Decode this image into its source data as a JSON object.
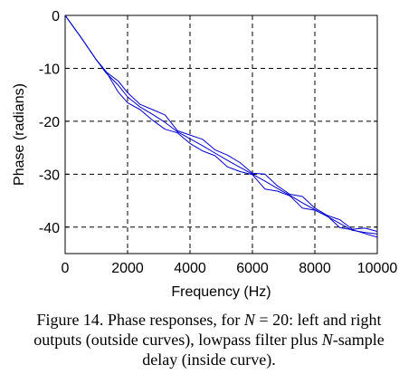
{
  "chart_data": {
    "type": "line",
    "xlabel": "Frequency (Hz)",
    "ylabel": "Phase (radians)",
    "xlim": [
      0,
      10000
    ],
    "ylim": [
      -45,
      0
    ],
    "xticks": [
      "0",
      "2000",
      "4000",
      "6000",
      "8000",
      "10000"
    ],
    "yticks": [
      "0",
      "-10",
      "-20",
      "-30",
      "-40"
    ],
    "grid": true,
    "line_color": "#0000cc",
    "series": [
      {
        "values_x": [
          0,
          500,
          1000,
          1300,
          1700,
          2000,
          2400,
          2800,
          3200,
          3600,
          4000,
          4400,
          4800,
          5200,
          5600,
          6000,
          6400,
          6800,
          7200,
          7600,
          8000,
          8400,
          8800,
          9200,
          9600,
          10000
        ],
        "values_y": [
          0,
          -4.1,
          -8.4,
          -10.5,
          -14.5,
          -16.5,
          -17.8,
          -19.8,
          -21.5,
          -22.2,
          -24.2,
          -25.6,
          -26.5,
          -28.6,
          -29.5,
          -30.1,
          -32.8,
          -33.2,
          -34.1,
          -36.4,
          -36.8,
          -37.9,
          -40.1,
          -40.5,
          -41.2,
          -41.9
        ]
      },
      {
        "values_x": [
          0,
          500,
          1000,
          1300,
          1700,
          2000,
          2400,
          2800,
          3200,
          3600,
          4000,
          4400,
          4800,
          5200,
          5600,
          6000,
          6400,
          6800,
          7200,
          7600,
          8000,
          8400,
          8800,
          9200,
          9600,
          10000
        ],
        "values_y": [
          0,
          -4.1,
          -8.4,
          -10.8,
          -13.2,
          -15.4,
          -17.3,
          -18.7,
          -20.2,
          -22.0,
          -23.3,
          -24.6,
          -26.0,
          -27.4,
          -28.7,
          -30.0,
          -31.3,
          -32.7,
          -34.0,
          -35.4,
          -36.7,
          -38.0,
          -39.3,
          -40.6,
          -41.0,
          -41.3
        ]
      },
      {
        "values_x": [
          0,
          500,
          1000,
          1300,
          1700,
          2000,
          2400,
          2800,
          3200,
          3600,
          4000,
          4400,
          4800,
          5200,
          5600,
          6000,
          6400,
          6800,
          7200,
          7600,
          8000,
          8400,
          8800,
          9200,
          9600,
          10000
        ],
        "values_y": [
          0,
          -4.1,
          -8.4,
          -10.6,
          -12.4,
          -14.6,
          -16.8,
          -17.8,
          -18.8,
          -21.8,
          -22.6,
          -23.4,
          -25.4,
          -26.4,
          -27.8,
          -29.8,
          -30.0,
          -32.2,
          -33.8,
          -34.2,
          -36.4,
          -37.8,
          -38.6,
          -40.4,
          -40.2,
          -40.8
        ]
      }
    ]
  },
  "caption": {
    "prefix": "Figure 14. Phase responses, for ",
    "n_symbol": "N",
    "n_value": " = 20: left and right",
    "line2_before": "outputs (outside curves), lowpass filter plus ",
    "line2_italic": "N",
    "line2_after": "-sample",
    "line3": "delay (inside curve)."
  }
}
